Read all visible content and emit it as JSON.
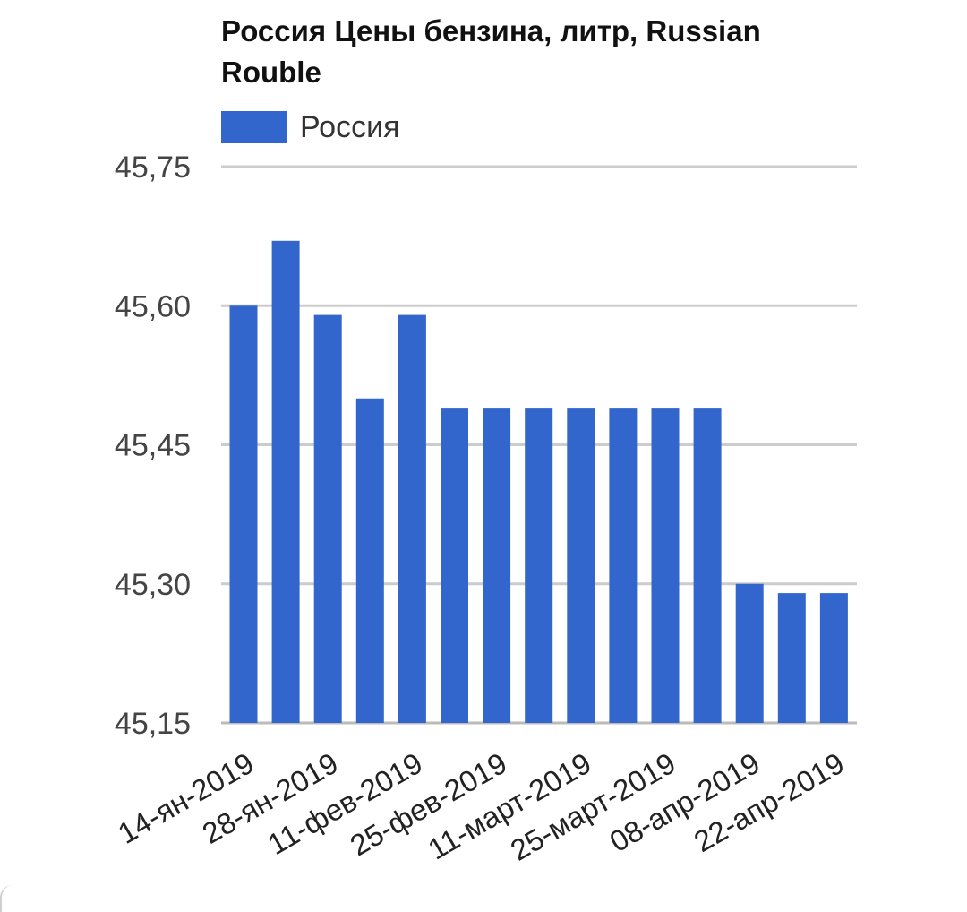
{
  "chart_data": {
    "type": "bar",
    "title": "Россия Цены бензина, литр, Russian Rouble",
    "xlabel": "",
    "ylabel": "",
    "series": [
      {
        "name": "Россия",
        "color": "#3366cc",
        "values": [
          45.6,
          45.67,
          45.59,
          45.5,
          45.59,
          45.49,
          45.49,
          45.49,
          45.49,
          45.49,
          45.49,
          45.49,
          45.3,
          45.29,
          45.29
        ]
      }
    ],
    "categories": [
      "14-ян-2019",
      "",
      "28-ян-2019",
      "",
      "11-фев-2019",
      "",
      "25-фев-2019",
      "",
      "11-март-2019",
      "",
      "25-март-2019",
      "",
      "08-апр-2019",
      "",
      "22-апр-2019"
    ],
    "x_tick_labels": [
      "14-ян-2019",
      "28-ян-2019",
      "11-фев-2019",
      "25-фев-2019",
      "11-март-2019",
      "25-март-2019",
      "08-апр-2019",
      "22-апр-2019"
    ],
    "y_ticks": [
      "45,15",
      "45,30",
      "45,45",
      "45,60",
      "45,75"
    ],
    "y_tick_values": [
      45.15,
      45.3,
      45.45,
      45.6,
      45.75
    ],
    "ylim": [
      45.15,
      45.75
    ],
    "grid": true,
    "legend_position": "top-left"
  }
}
